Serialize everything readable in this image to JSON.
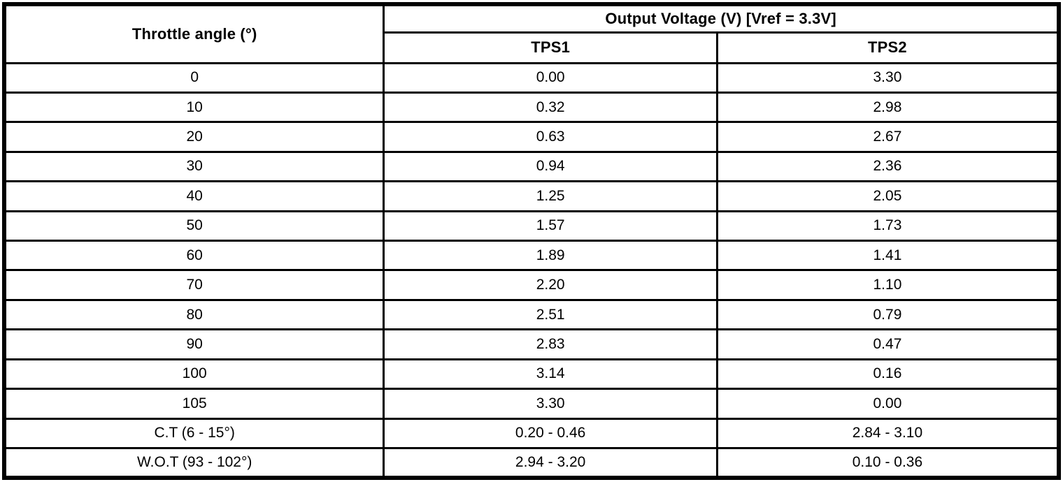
{
  "chart_data": {
    "type": "table",
    "corner_header": "Throttle angle (°)",
    "group_header": "Output Voltage (V) [Vref = 3.3V]",
    "sub_headers": [
      "TPS1",
      "TPS2"
    ],
    "columns": [
      "Throttle angle (°)",
      "TPS1",
      "TPS2"
    ],
    "rows": [
      [
        "0",
        "0.00",
        "3.30"
      ],
      [
        "10",
        "0.32",
        "2.98"
      ],
      [
        "20",
        "0.63",
        "2.67"
      ],
      [
        "30",
        "0.94",
        "2.36"
      ],
      [
        "40",
        "1.25",
        "2.05"
      ],
      [
        "50",
        "1.57",
        "1.73"
      ],
      [
        "60",
        "1.89",
        "1.41"
      ],
      [
        "70",
        "2.20",
        "1.10"
      ],
      [
        "80",
        "2.51",
        "0.79"
      ],
      [
        "90",
        "2.83",
        "0.47"
      ],
      [
        "100",
        "3.14",
        "0.16"
      ],
      [
        "105",
        "3.30",
        "0.00"
      ],
      [
        "C.T (6 - 15°)",
        "0.20 - 0.46",
        "2.84 - 3.10"
      ],
      [
        "W.O.T (93 - 102°)",
        "2.94 - 3.20",
        "0.10 - 0.36"
      ]
    ],
    "notes": {
      "vref": "3.3V",
      "colors": {
        "border": "#000000",
        "background": "#ffffff",
        "text": "#000000"
      }
    }
  }
}
